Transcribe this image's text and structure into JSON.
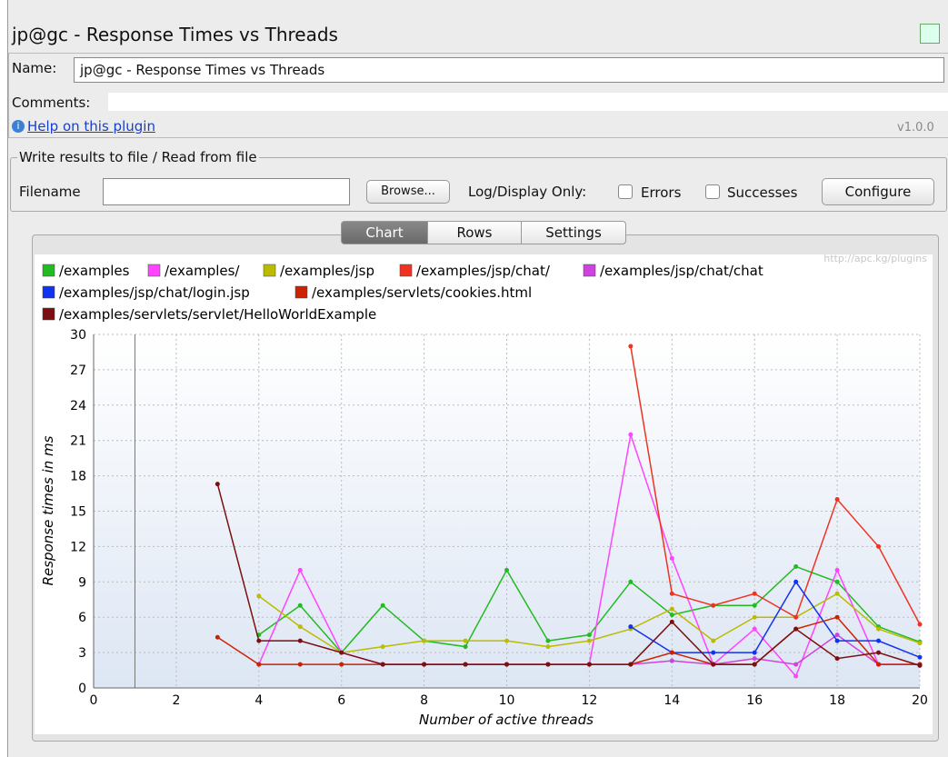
{
  "window": {
    "title": "jp@gc - Response Times vs Threads",
    "version": "v1.0.0"
  },
  "form": {
    "name_label": "Name:",
    "name_value": "jp@gc - Response Times vs Threads",
    "comments_label": "Comments:",
    "help_link": "Help on this plugin"
  },
  "file_group": {
    "title": "Write results to file / Read from file",
    "filename_label": "Filename",
    "browse": "Browse...",
    "log_label": "Log/Display Only:",
    "errors": "Errors",
    "successes": "Successes",
    "configure": "Configure"
  },
  "tabs": [
    "Chart",
    "Rows",
    "Settings"
  ],
  "chart_data": {
    "type": "line",
    "watermark": "http://apc.kg/plugins",
    "xlabel": "Number of active threads",
    "ylabel": "Response times in ms",
    "xlim": [
      0,
      20
    ],
    "xticks": [
      0,
      2,
      4,
      6,
      8,
      10,
      12,
      14,
      16,
      18,
      20
    ],
    "ylim": [
      0,
      30
    ],
    "yticks": [
      0,
      3,
      6,
      9,
      12,
      15,
      18,
      21,
      24,
      27,
      30
    ],
    "grid": true,
    "x": [
      3,
      4,
      5,
      6,
      7,
      8,
      9,
      10,
      11,
      12,
      13,
      14,
      15,
      16,
      17,
      18,
      19,
      20
    ],
    "series": [
      {
        "name": "/examples",
        "color": "#22bb22",
        "values": [
          null,
          4.5,
          7,
          3,
          7,
          4,
          3.5,
          10,
          4,
          4.5,
          9,
          6.2,
          7,
          7,
          10.3,
          9,
          5.2,
          3.9
        ]
      },
      {
        "name": "/examples/",
        "color": "#ff44ff",
        "values": [
          null,
          2,
          10,
          3,
          2,
          2,
          2,
          2,
          2,
          2,
          21.5,
          11,
          2,
          5,
          1,
          10,
          2,
          2
        ]
      },
      {
        "name": "/examples/jsp",
        "color": "#bbbb00",
        "values": [
          null,
          7.8,
          5.2,
          3,
          3.5,
          4,
          4,
          4,
          3.5,
          4,
          5,
          6.7,
          4,
          6,
          6,
          8,
          5,
          3.8
        ]
      },
      {
        "name": "/examples/jsp/chat/",
        "color": "#ee3322",
        "values": [
          null,
          null,
          null,
          null,
          null,
          null,
          null,
          null,
          null,
          null,
          29,
          8,
          7,
          8,
          6,
          16,
          12,
          5.4
        ]
      },
      {
        "name": "/examples/jsp/chat/chat",
        "color": "#cc44dd",
        "values": [
          null,
          null,
          null,
          null,
          null,
          null,
          null,
          null,
          null,
          null,
          2,
          2.3,
          2,
          2.5,
          2,
          4.5,
          2,
          2
        ]
      },
      {
        "name": "/examples/jsp/chat/login.jsp",
        "color": "#1133ee",
        "values": [
          null,
          null,
          null,
          null,
          null,
          null,
          null,
          null,
          null,
          null,
          5.2,
          3,
          3,
          3,
          9,
          4,
          4,
          2.6
        ]
      },
      {
        "name": "/examples/servlets/cookies.html",
        "color": "#cc2200",
        "values": [
          4.3,
          2,
          2,
          2,
          2,
          2,
          2,
          2,
          2,
          2,
          2,
          3,
          2,
          2,
          5,
          6,
          2,
          2
        ]
      },
      {
        "name": "/examples/servlets/servlet/HelloWorldExample",
        "color": "#7a1010",
        "values": [
          17.3,
          4,
          4,
          3,
          2,
          2,
          2,
          2,
          2,
          2,
          2,
          5.6,
          2,
          2,
          5,
          2.5,
          3,
          1.9
        ]
      }
    ]
  }
}
